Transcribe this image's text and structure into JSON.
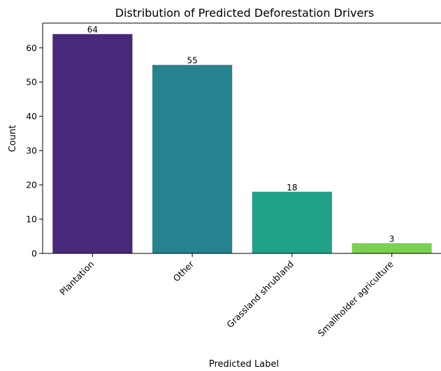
{
  "chart_data": {
    "type": "bar",
    "title": "Distribution of Predicted Deforestation Drivers",
    "xlabel": "Predicted Label",
    "ylabel": "Count",
    "categories": [
      "Plantation",
      "Other",
      "Grassland shrubland",
      "Smallholder agriculture"
    ],
    "values": [
      64,
      55,
      18,
      3
    ],
    "colors": [
      "#482878",
      "#26828e",
      "#1fa187",
      "#7ad151"
    ],
    "bar_value_labels": [
      "64",
      "55",
      "18",
      "3"
    ],
    "ylim": [
      0,
      67.2
    ],
    "yticks": [
      0,
      10,
      20,
      30,
      40,
      50,
      60
    ],
    "ytick_labels": [
      "0",
      "10",
      "20",
      "30",
      "40",
      "50",
      "60"
    ],
    "grid": false,
    "legend": "none"
  }
}
